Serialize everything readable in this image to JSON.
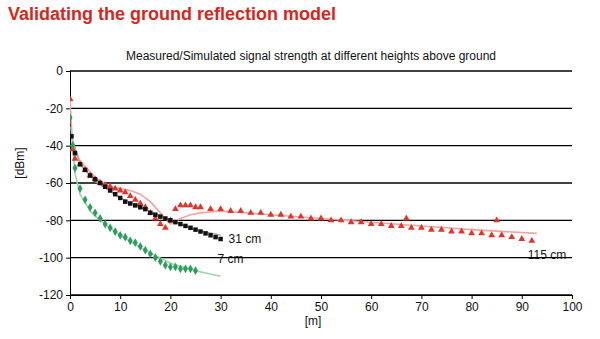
{
  "chart_data": {
    "type": "scatter",
    "title": "Validating the ground reflection model",
    "subtitle": "Measured/Simulated signal strength at different heights above ground",
    "x_label": "[m]",
    "y_label": "[dBm]",
    "xlim": [
      0,
      100
    ],
    "ylim": [
      -120,
      0
    ],
    "xticks": [
      0,
      10,
      20,
      30,
      40,
      50,
      60,
      70,
      80,
      90,
      100
    ],
    "yticks": [
      -120,
      -100,
      -80,
      -60,
      -40,
      -20,
      0
    ],
    "grid": true,
    "series": [
      {
        "type": "line",
        "color": "#f4a3a0",
        "line_style": "solid",
        "x": [
          0,
          0.5,
          2,
          5,
          8,
          10,
          12,
          14,
          16,
          18,
          20,
          22,
          24,
          26,
          30,
          40,
          50,
          60,
          70,
          80,
          93
        ],
        "values": [
          -15,
          -40,
          -48,
          -57,
          -62,
          -63,
          -64,
          -66,
          -70,
          -76,
          -82,
          -79,
          -77,
          -76,
          -75,
          -77,
          -79,
          -81,
          -83,
          -85,
          -87
        ]
      },
      {
        "type": "line",
        "color": "#a8a8a8",
        "line_style": "solid",
        "x": [
          0.3,
          2,
          5,
          10,
          15,
          20,
          25,
          30
        ],
        "values": [
          -35,
          -50,
          -59,
          -68,
          -74,
          -80,
          -85,
          -88
        ]
      },
      {
        "type": "line",
        "color": "#9fd3ad",
        "line_style": "solid",
        "x": [
          0.2,
          1,
          2,
          4,
          6,
          10,
          15,
          20,
          25,
          30
        ],
        "values": [
          -30,
          -55,
          -66,
          -75,
          -80,
          -88,
          -96,
          -103,
          -107,
          -110
        ]
      },
      {
        "name": "115 cm",
        "type": "scatter",
        "color": "#e0352b",
        "marker": "triangle",
        "x": [
          0,
          0.5,
          1,
          2,
          3,
          4,
          5,
          6,
          7,
          8,
          9,
          10,
          11,
          12,
          13,
          14,
          15,
          16,
          17,
          18,
          19,
          20,
          21,
          22,
          23,
          24,
          25,
          26,
          28,
          30,
          32,
          34,
          36,
          38,
          40,
          42,
          44,
          46,
          48,
          50,
          52,
          54,
          56,
          58,
          60,
          62,
          64,
          66,
          67,
          68,
          70,
          72,
          74,
          76,
          78,
          80,
          82,
          84,
          85,
          86,
          88,
          90,
          92
        ],
        "values": [
          -15,
          -42,
          -47,
          -50,
          -53,
          -56,
          -58,
          -60,
          -61,
          -62,
          -63,
          -64,
          -65,
          -67,
          -69,
          -71,
          -73,
          -76,
          -79,
          -82,
          -84,
          -80,
          -74,
          -72,
          -72,
          -72,
          -73,
          -73,
          -74,
          -74,
          -75,
          -75,
          -76,
          -76,
          -77,
          -77,
          -78,
          -78,
          -79,
          -79,
          -80,
          -80,
          -81,
          -81,
          -82,
          -82,
          -83,
          -83,
          -79,
          -84,
          -84,
          -85,
          -85,
          -86,
          -86,
          -87,
          -87,
          -88,
          -80,
          -88,
          -89,
          -90,
          -91
        ]
      },
      {
        "name": "31 cm",
        "type": "scatter",
        "color": "#111111",
        "marker": "square",
        "x": [
          0.3,
          1,
          2,
          3,
          4,
          5,
          6,
          7,
          8,
          9,
          10,
          11,
          12,
          13,
          14,
          15,
          16,
          17,
          18,
          19,
          20,
          21,
          22,
          23,
          24,
          25,
          26,
          27,
          28,
          29,
          30
        ],
        "values": [
          -35,
          -44,
          -50,
          -53,
          -56,
          -58,
          -60,
          -62,
          -64,
          -66,
          -68,
          -70,
          -71,
          -72,
          -73,
          -74,
          -76,
          -77,
          -78,
          -79,
          -80,
          -81,
          -82,
          -83,
          -84,
          -85,
          -86,
          -87,
          -88,
          -89,
          -90
        ]
      },
      {
        "name": "7 cm",
        "type": "scatter",
        "color": "#2e9e5e",
        "marker": "diamond",
        "x": [
          0,
          0.5,
          1,
          2,
          3,
          4,
          5,
          6,
          7,
          8,
          9,
          10,
          11,
          12,
          13,
          14,
          15,
          16,
          17,
          18,
          19,
          20,
          21,
          22,
          23,
          24,
          25
        ],
        "values": [
          -25,
          -40,
          -52,
          -63,
          -69,
          -73,
          -76,
          -79,
          -82,
          -84,
          -86,
          -88,
          -89,
          -91,
          -92,
          -94,
          -96,
          -98,
          -100,
          -102,
          -104,
          -105,
          -105,
          -106,
          -106,
          -106,
          -107
        ]
      }
    ]
  }
}
